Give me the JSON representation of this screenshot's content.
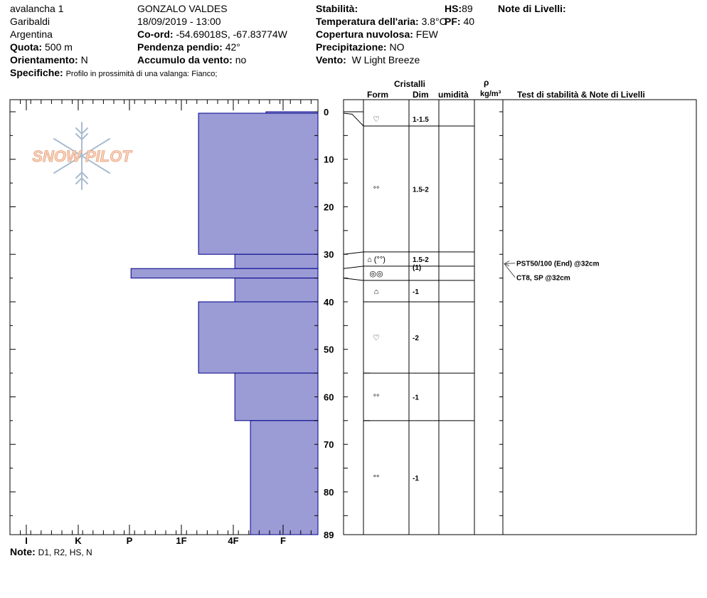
{
  "header": {
    "profile_name": "avalancha 1",
    "location": "Garibaldi",
    "country": "Argentina",
    "elevation_label": "Quota:",
    "elevation_value": "500 m",
    "aspect_label": "Orientamento:",
    "aspect_value": "N",
    "specifics_label": "Specifiche:",
    "specifics_value": "Profilo in prossimità di una valanga: Fianco;",
    "observer": "GONZALO VALDES",
    "datetime": "18/09/2019 - 13:00",
    "coords_label": "Co-ord:",
    "coords_value": "-54.69018S, -67.83774W",
    "slope_label": "Pendenza pendio:",
    "slope_value": "42°",
    "wind_loading_label": "Accumulo da vento:",
    "wind_loading_value": "no",
    "stability_label": "Stabilità:",
    "air_temp_label": "Temperatura dell'aria:",
    "air_temp_value": "3.8°C",
    "sky_label": "Copertura nuvolosa:",
    "sky_value": "FEW",
    "precip_label": "Precipitazione:",
    "precip_value": "NO",
    "wind_label": "Vento:",
    "wind_value": "W Light Breeze",
    "hs_label": "HS:",
    "hs_value": "89",
    "pf_label": "PF:",
    "pf_value": "40",
    "layer_notes_label": "Note di Livelli:"
  },
  "watermark": "SNOW PILOT",
  "table_headers": {
    "crystals": "Cristalli",
    "form": "Form",
    "size": "Dim",
    "moisture": "umidità",
    "density_symbol": "ρ",
    "density_unit": "kg/m³",
    "tests": "Test di stabilità & Note di Livelli"
  },
  "footer": {
    "note_label": "Note:",
    "note_value": "D1, R2, HS, N"
  },
  "chart_data": {
    "type": "bar",
    "orientation": "horizontal",
    "description_of_axes": "hardness vs depth",
    "y_axis_ticks": [
      "0",
      "10",
      "20",
      "30",
      "40",
      "50",
      "60",
      "70",
      "80",
      "89"
    ],
    "ylim": [
      0,
      89
    ],
    "hardness_categories": [
      "I",
      "K",
      "P",
      "1F",
      "4F",
      "F"
    ],
    "hardness_layers": [
      {
        "top": 0,
        "bottom": 0.3,
        "hardness_level": 1.0
      },
      {
        "top": 0.3,
        "bottom": 30,
        "hardness_level": 2.3
      },
      {
        "top": 30,
        "bottom": 33,
        "hardness_level": 1.6
      },
      {
        "top": 33,
        "bottom": 35,
        "hardness_level": 3.6
      },
      {
        "top": 35,
        "bottom": 40,
        "hardness_level": 1.6
      },
      {
        "top": 40,
        "bottom": 55,
        "hardness_level": 2.3
      },
      {
        "top": 55,
        "bottom": 65,
        "hardness_level": 1.6
      },
      {
        "top": 65,
        "bottom": 89,
        "hardness_level": 1.3
      }
    ],
    "grain_layers": [
      {
        "top": 0,
        "bottom": 3,
        "form_icon": "decomposing-fragments-icon",
        "form": "♡",
        "size": "1-1.5"
      },
      {
        "top": 3,
        "bottom": 29.5,
        "form_icon": "rounded-grains-icon",
        "form": "°°",
        "size": "1.5-2"
      },
      {
        "top": 29.5,
        "bottom": 32.5,
        "form_icon": "faceted-rounded-icon",
        "form": "⌂ (°°)",
        "size": "1.5-2",
        "size_extra": "(1)"
      },
      {
        "top": 32.5,
        "bottom": 35.5,
        "form_icon": "melt-forms-icon",
        "form": "◎◎",
        "size": ""
      },
      {
        "top": 35.5,
        "bottom": 40,
        "form_icon": "faceted-crystals-icon",
        "form": "⌂",
        "size": "-1"
      },
      {
        "top": 40,
        "bottom": 55,
        "form_icon": "decomposing-fragments-icon",
        "form": "♡",
        "size": "-2"
      },
      {
        "top": 55,
        "bottom": 65,
        "form_icon": "rounded-grains-icon",
        "form": "°°",
        "size": "-1"
      },
      {
        "top": 65,
        "bottom": 89,
        "form_icon": "rounded-grains-icon",
        "form": "°°",
        "size": "-1"
      }
    ],
    "tests": [
      {
        "depth": 32,
        "label": "PST50/100 (End) @32cm"
      },
      {
        "depth": 32,
        "label": "CT8, SP @32cm"
      }
    ],
    "colors": {
      "bar_fill": "#9b9bd6",
      "bar_stroke": "#00008b"
    }
  }
}
